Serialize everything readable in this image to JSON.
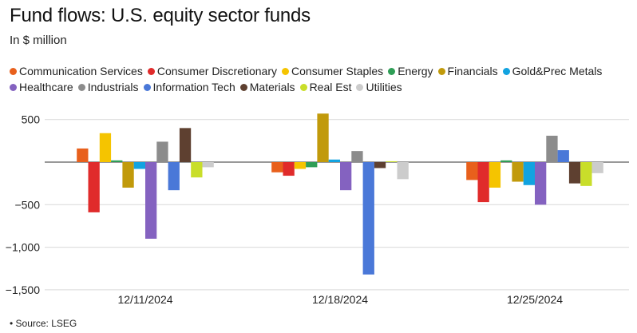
{
  "header": {
    "title": "Fund flows: U.S. equity sector funds",
    "subtitle": "In $ million"
  },
  "footer": {
    "source": "• Source: LSEG"
  },
  "chart_data": {
    "type": "bar",
    "title": "Fund flows: U.S. equity sector funds",
    "subtitle": "In $ million",
    "xlabel": "",
    "ylabel": "",
    "ylim": [
      -1500,
      500
    ],
    "yticks": [
      500,
      -500,
      -1000,
      -1500
    ],
    "ytick_labels": [
      "500",
      "−500",
      "−1,000",
      "−1,500"
    ],
    "grid": "horizontal",
    "legend_position": "top",
    "categories": [
      "12/11/2024",
      "12/18/2024",
      "12/25/2024"
    ],
    "series": [
      {
        "name": "Communication Services",
        "color": "#e8601c",
        "values": [
          160,
          -120,
          -210
        ]
      },
      {
        "name": "Consumer Discretionary",
        "color": "#e02b2b",
        "values": [
          -590,
          -160,
          -470
        ]
      },
      {
        "name": "Consumer Staples",
        "color": "#f5c400",
        "values": [
          340,
          -80,
          -300
        ]
      },
      {
        "name": "Energy",
        "color": "#2f9e56",
        "values": [
          20,
          -60,
          20
        ]
      },
      {
        "name": "Financials",
        "color": "#c19a0b",
        "values": [
          -300,
          570,
          -230
        ]
      },
      {
        "name": "Gold&Prec Metals",
        "color": "#12a3e0",
        "values": [
          -80,
          30,
          -270
        ]
      },
      {
        "name": "Healthcare",
        "color": "#8462c0",
        "values": [
          -900,
          -330,
          -500
        ]
      },
      {
        "name": "Industrials",
        "color": "#8c8c8c",
        "values": [
          240,
          130,
          310
        ]
      },
      {
        "name": "Information Tech",
        "color": "#4a78d8",
        "values": [
          -330,
          -1320,
          140
        ]
      },
      {
        "name": "Materials",
        "color": "#5e4030",
        "values": [
          400,
          -70,
          -250
        ]
      },
      {
        "name": "Real Est",
        "color": "#c9de2a",
        "values": [
          -180,
          10,
          -280
        ]
      },
      {
        "name": "Utilities",
        "color": "#cccccc",
        "values": [
          -60,
          -200,
          -130
        ]
      }
    ]
  }
}
